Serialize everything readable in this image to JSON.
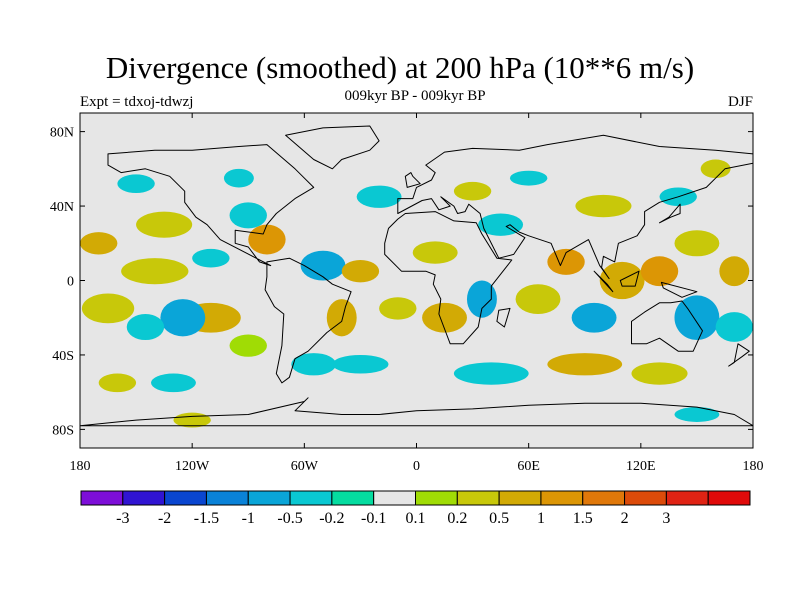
{
  "title": "Divergence (smoothed) at 200 hPa (10**6 m/s)",
  "subtitle": "009kyr BP - 009kyr BP",
  "experiment": "Expt = tdxoj-tdwzj",
  "season": "DJF",
  "map": {
    "background_color": "#e6e6e6",
    "lat_ticks": [
      {
        "label": "80N",
        "lat": 80
      },
      {
        "label": "40N",
        "lat": 40
      },
      {
        "label": "0",
        "lat": 0
      },
      {
        "label": "40S",
        "lat": -40
      },
      {
        "label": "80S",
        "lat": -80
      }
    ],
    "lon_ticks": [
      {
        "label": "180",
        "lon": -180
      },
      {
        "label": "120W",
        "lon": -120
      },
      {
        "label": "60W",
        "lon": -60
      },
      {
        "label": "0",
        "lon": 0
      },
      {
        "label": "60E",
        "lon": 60
      },
      {
        "label": "120E",
        "lon": 120
      },
      {
        "label": "180",
        "lon": 180
      }
    ],
    "blobs": [
      {
        "lon": -140,
        "lat": 5,
        "rx": 18,
        "ry": 7,
        "c": 9
      },
      {
        "lon": -165,
        "lat": -15,
        "rx": 14,
        "ry": 8,
        "c": 9
      },
      {
        "lon": -110,
        "lat": -20,
        "rx": 16,
        "ry": 8,
        "c": 10
      },
      {
        "lon": -125,
        "lat": -20,
        "rx": 12,
        "ry": 10,
        "c": 4
      },
      {
        "lon": -145,
        "lat": -25,
        "rx": 10,
        "ry": 7,
        "c": 5
      },
      {
        "lon": -135,
        "lat": 30,
        "rx": 15,
        "ry": 7,
        "c": 9
      },
      {
        "lon": -170,
        "lat": 20,
        "rx": 10,
        "ry": 6,
        "c": 10
      },
      {
        "lon": -150,
        "lat": 52,
        "rx": 10,
        "ry": 5,
        "c": 5
      },
      {
        "lon": -110,
        "lat": 12,
        "rx": 10,
        "ry": 5,
        "c": 5
      },
      {
        "lon": -80,
        "lat": 22,
        "rx": 10,
        "ry": 8,
        "c": 11
      },
      {
        "lon": -90,
        "lat": 35,
        "rx": 10,
        "ry": 7,
        "c": 5
      },
      {
        "lon": -95,
        "lat": 55,
        "rx": 8,
        "ry": 5,
        "c": 5
      },
      {
        "lon": -50,
        "lat": 8,
        "rx": 12,
        "ry": 8,
        "c": 4
      },
      {
        "lon": -30,
        "lat": 5,
        "rx": 10,
        "ry": 6,
        "c": 10
      },
      {
        "lon": -40,
        "lat": -20,
        "rx": 8,
        "ry": 10,
        "c": 10
      },
      {
        "lon": -55,
        "lat": -45,
        "rx": 12,
        "ry": 6,
        "c": 5
      },
      {
        "lon": -30,
        "lat": -45,
        "rx": 15,
        "ry": 5,
        "c": 5
      },
      {
        "lon": -20,
        "lat": 45,
        "rx": 12,
        "ry": 6,
        "c": 5
      },
      {
        "lon": 40,
        "lat": -50,
        "rx": 20,
        "ry": 6,
        "c": 5
      },
      {
        "lon": -90,
        "lat": -35,
        "rx": 10,
        "ry": 6,
        "c": 8
      },
      {
        "lon": -10,
        "lat": -15,
        "rx": 10,
        "ry": 6,
        "c": 9
      },
      {
        "lon": 15,
        "lat": -20,
        "rx": 12,
        "ry": 8,
        "c": 10
      },
      {
        "lon": 35,
        "lat": -10,
        "rx": 8,
        "ry": 10,
        "c": 4
      },
      {
        "lon": 10,
        "lat": 15,
        "rx": 12,
        "ry": 6,
        "c": 9
      },
      {
        "lon": 45,
        "lat": 30,
        "rx": 12,
        "ry": 6,
        "c": 5
      },
      {
        "lon": 30,
        "lat": 48,
        "rx": 10,
        "ry": 5,
        "c": 9
      },
      {
        "lon": 80,
        "lat": 10,
        "rx": 10,
        "ry": 7,
        "c": 11
      },
      {
        "lon": 65,
        "lat": -10,
        "rx": 12,
        "ry": 8,
        "c": 9
      },
      {
        "lon": 95,
        "lat": -20,
        "rx": 12,
        "ry": 8,
        "c": 4
      },
      {
        "lon": 110,
        "lat": 0,
        "rx": 12,
        "ry": 10,
        "c": 10
      },
      {
        "lon": 130,
        "lat": 5,
        "rx": 10,
        "ry": 8,
        "c": 11
      },
      {
        "lon": 150,
        "lat": 20,
        "rx": 12,
        "ry": 7,
        "c": 9
      },
      {
        "lon": 150,
        "lat": -20,
        "rx": 12,
        "ry": 12,
        "c": 4
      },
      {
        "lon": 170,
        "lat": -25,
        "rx": 10,
        "ry": 8,
        "c": 5
      },
      {
        "lon": 90,
        "lat": -45,
        "rx": 20,
        "ry": 6,
        "c": 10
      },
      {
        "lon": 130,
        "lat": -50,
        "rx": 15,
        "ry": 6,
        "c": 9
      },
      {
        "lon": 100,
        "lat": 40,
        "rx": 15,
        "ry": 6,
        "c": 9
      },
      {
        "lon": 140,
        "lat": 45,
        "rx": 10,
        "ry": 5,
        "c": 5
      },
      {
        "lon": 160,
        "lat": 60,
        "rx": 8,
        "ry": 5,
        "c": 9
      },
      {
        "lon": -160,
        "lat": -55,
        "rx": 10,
        "ry": 5,
        "c": 9
      },
      {
        "lon": -130,
        "lat": -55,
        "rx": 12,
        "ry": 5,
        "c": 5
      },
      {
        "lon": 150,
        "lat": -72,
        "rx": 12,
        "ry": 4,
        "c": 5
      },
      {
        "lon": -120,
        "lat": -75,
        "rx": 10,
        "ry": 4,
        "c": 9
      },
      {
        "lon": 60,
        "lat": 55,
        "rx": 10,
        "ry": 4,
        "c": 5
      },
      {
        "lon": 170,
        "lat": 5,
        "rx": 8,
        "ry": 8,
        "c": 10
      }
    ],
    "land": [
      [
        [
          -165,
          68
        ],
        [
          -140,
          70
        ],
        [
          -120,
          70
        ],
        [
          -95,
          72
        ],
        [
          -80,
          73
        ],
        [
          -65,
          60
        ],
        [
          -55,
          50
        ],
        [
          -65,
          44
        ],
        [
          -75,
          36
        ],
        [
          -80,
          30
        ],
        [
          -82,
          25
        ],
        [
          -97,
          27
        ],
        [
          -97,
          20
        ],
        [
          -90,
          18
        ],
        [
          -84,
          10
        ],
        [
          -78,
          8
        ],
        [
          -105,
          22
        ],
        [
          -112,
          30
        ],
        [
          -118,
          34
        ],
        [
          -124,
          42
        ],
        [
          -124,
          48
        ],
        [
          -132,
          56
        ],
        [
          -145,
          60
        ],
        [
          -158,
          58
        ],
        [
          -165,
          62
        ]
      ],
      [
        [
          -80,
          10
        ],
        [
          -68,
          12
        ],
        [
          -60,
          8
        ],
        [
          -50,
          2
        ],
        [
          -45,
          -2
        ],
        [
          -35,
          -6
        ],
        [
          -38,
          -14
        ],
        [
          -40,
          -22
        ],
        [
          -48,
          -28
        ],
        [
          -58,
          -38
        ],
        [
          -65,
          -42
        ],
        [
          -68,
          -52
        ],
        [
          -72,
          -55
        ],
        [
          -75,
          -50
        ],
        [
          -72,
          -35
        ],
        [
          -71,
          -18
        ],
        [
          -76,
          -14
        ],
        [
          -81,
          -5
        ],
        [
          -80,
          2
        ]
      ],
      [
        [
          -15,
          28
        ],
        [
          -17,
          20
        ],
        [
          -17,
          14
        ],
        [
          -8,
          5
        ],
        [
          5,
          5
        ],
        [
          10,
          3
        ],
        [
          9,
          -2
        ],
        [
          13,
          -10
        ],
        [
          12,
          -18
        ],
        [
          18,
          -34
        ],
        [
          25,
          -34
        ],
        [
          33,
          -25
        ],
        [
          35,
          -15
        ],
        [
          40,
          -10
        ],
        [
          40,
          -3
        ],
        [
          51,
          11
        ],
        [
          43,
          12
        ],
        [
          35,
          25
        ],
        [
          32,
          31
        ],
        [
          20,
          32
        ],
        [
          10,
          37
        ],
        [
          -6,
          36
        ],
        [
          -10,
          33
        ]
      ],
      [
        [
          -10,
          36
        ],
        [
          -10,
          44
        ],
        [
          -2,
          44
        ],
        [
          0,
          50
        ],
        [
          8,
          54
        ],
        [
          10,
          58
        ],
        [
          5,
          62
        ],
        [
          15,
          69
        ],
        [
          30,
          71
        ],
        [
          55,
          70
        ],
        [
          70,
          73
        ],
        [
          100,
          78
        ],
        [
          130,
          72
        ],
        [
          160,
          70
        ],
        [
          180,
          68
        ],
        [
          180,
          63
        ],
        [
          165,
          60
        ],
        [
          155,
          50
        ],
        [
          140,
          45
        ],
        [
          130,
          42
        ],
        [
          122,
          37
        ],
        [
          122,
          30
        ],
        [
          118,
          24
        ],
        [
          108,
          20
        ],
        [
          106,
          10
        ],
        [
          100,
          13
        ],
        [
          99,
          7
        ],
        [
          103,
          1
        ],
        [
          98,
          8
        ],
        [
          92,
          22
        ],
        [
          80,
          15
        ],
        [
          77,
          8
        ],
        [
          72,
          20
        ],
        [
          60,
          24
        ],
        [
          55,
          26
        ],
        [
          50,
          30
        ],
        [
          48,
          29
        ],
        [
          58,
          23
        ],
        [
          52,
          14
        ],
        [
          44,
          12
        ],
        [
          36,
          28
        ],
        [
          34,
          36
        ],
        [
          28,
          41
        ],
        [
          26,
          37
        ],
        [
          22,
          36
        ],
        [
          20,
          40
        ],
        [
          13,
          45
        ],
        [
          18,
          40
        ],
        [
          12,
          38
        ],
        [
          8,
          44
        ],
        [
          3,
          43
        ]
      ],
      [
        [
          115,
          -22
        ],
        [
          115,
          -34
        ],
        [
          123,
          -34
        ],
        [
          130,
          -31
        ],
        [
          140,
          -38
        ],
        [
          148,
          -38
        ],
        [
          153,
          -27
        ],
        [
          145,
          -15
        ],
        [
          142,
          -11
        ],
        [
          136,
          -12
        ],
        [
          130,
          -12
        ],
        [
          122,
          -17
        ]
      ],
      [
        [
          -180,
          -78
        ],
        [
          -150,
          -75
        ],
        [
          -120,
          -73
        ],
        [
          -90,
          -72
        ],
        [
          -60,
          -65
        ],
        [
          -58,
          -63
        ],
        [
          -65,
          -70
        ],
        [
          -40,
          -72
        ],
        [
          -20,
          -72
        ],
        [
          0,
          -70
        ],
        [
          30,
          -69
        ],
        [
          60,
          -67
        ],
        [
          90,
          -66
        ],
        [
          120,
          -66
        ],
        [
          150,
          -68
        ],
        [
          170,
          -72
        ],
        [
          180,
          -78
        ]
      ],
      [
        [
          -45,
          60
        ],
        [
          -55,
          65
        ],
        [
          -70,
          78
        ],
        [
          -50,
          82
        ],
        [
          -25,
          83
        ],
        [
          -20,
          75
        ],
        [
          -25,
          70
        ],
        [
          -40,
          65
        ]
      ],
      [
        [
          95,
          5
        ],
        [
          105,
          -6
        ],
        [
          102,
          -2
        ]
      ],
      [
        [
          109,
          0
        ],
        [
          119,
          5
        ],
        [
          117,
          -3
        ],
        [
          110,
          -3
        ]
      ],
      [
        [
          131,
          -1
        ],
        [
          150,
          -6
        ],
        [
          142,
          -9
        ],
        [
          132,
          -4
        ]
      ],
      [
        [
          130,
          31
        ],
        [
          135,
          34
        ],
        [
          141,
          41
        ],
        [
          141,
          36
        ],
        [
          136,
          34
        ]
      ],
      [
        [
          -5,
          50
        ],
        [
          2,
          52
        ],
        [
          -2,
          56
        ],
        [
          -3,
          58
        ],
        [
          -6,
          56
        ]
      ],
      [
        [
          44,
          -16
        ],
        [
          50,
          -15
        ],
        [
          47,
          -25
        ],
        [
          43,
          -22
        ]
      ],
      [
        [
          167,
          -46
        ],
        [
          174,
          -41
        ],
        [
          178,
          -38
        ],
        [
          172,
          -34
        ],
        [
          170,
          -44
        ]
      ]
    ]
  },
  "colorbar": {
    "colors": [
      "#7d0ed8",
      "#3014d2",
      "#0a46d0",
      "#0a82d8",
      "#0aa5d8",
      "#0ac8d2",
      "#05dca0",
      "#e6e6e6",
      "#a0dc05",
      "#c8c80a",
      "#d2aa05",
      "#dc9605",
      "#e0780a",
      "#dc4b0a",
      "#e02314",
      "#e00a0a"
    ],
    "labels": [
      "-3",
      "-2",
      "-1.5",
      "-1",
      "-0.5",
      "-0.2",
      "-0.1",
      "0.1",
      "0.2",
      "0.5",
      "1",
      "1.5",
      "2",
      "3"
    ]
  }
}
